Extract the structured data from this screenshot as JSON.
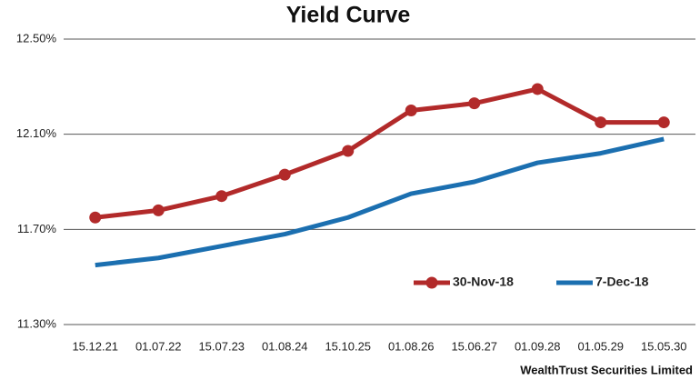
{
  "chart_data": {
    "type": "line",
    "title": "Yield Curve",
    "categories": [
      "15.12.21",
      "01.07.22",
      "15.07.23",
      "01.08.24",
      "15.10.25",
      "01.08.26",
      "15.06.27",
      "01.09.28",
      "01.05.29",
      "15.05.30"
    ],
    "series": [
      {
        "name": "30-Nov-18",
        "color": "#b22a2a",
        "marker": true,
        "values": [
          11.75,
          11.78,
          11.84,
          11.93,
          12.03,
          12.2,
          12.23,
          12.29,
          12.15,
          12.15
        ]
      },
      {
        "name": "7-Dec-18",
        "color": "#1b6fb0",
        "marker": false,
        "values": [
          11.55,
          11.58,
          11.63,
          11.68,
          11.75,
          11.85,
          11.9,
          11.98,
          12.02,
          12.08
        ]
      }
    ],
    "ylim": [
      11.3,
      12.5
    ],
    "yticks": [
      {
        "value": 11.3,
        "label": "11.30%"
      },
      {
        "value": 11.7,
        "label": "11.70%"
      },
      {
        "value": 12.1,
        "label": "12.10%"
      },
      {
        "value": 12.5,
        "label": "12.50%"
      }
    ],
    "grid": true,
    "legend": "lower right",
    "footer": "WealthTrust Securities Limited"
  }
}
